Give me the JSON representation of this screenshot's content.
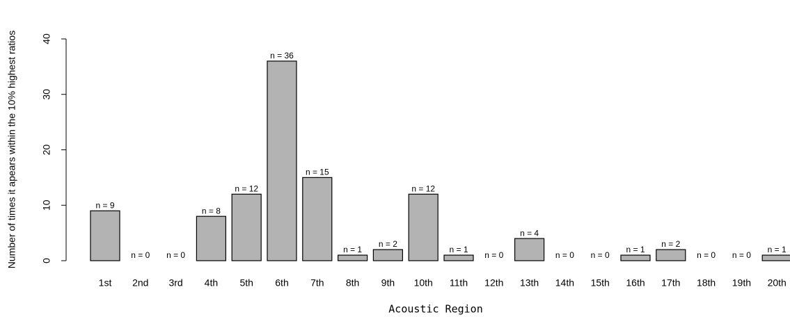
{
  "chart_data": {
    "type": "bar",
    "x_label": "Acoustic Region",
    "y_label": "Number of times it apears within the 10% highest ratios",
    "categories": [
      "1st",
      "2nd",
      "3rd",
      "4th",
      "5th",
      "6th",
      "7th",
      "8th",
      "9th",
      "10th",
      "11th",
      "12th",
      "13th",
      "14th",
      "15th",
      "16th",
      "17th",
      "18th",
      "19th",
      "20th"
    ],
    "values": [
      9,
      0,
      0,
      8,
      12,
      36,
      15,
      1,
      2,
      12,
      1,
      0,
      4,
      0,
      0,
      1,
      2,
      0,
      0,
      1
    ],
    "value_labels": [
      "n = 9",
      "n = 0",
      "n = 0",
      "n = 8",
      "n = 12",
      "n = 36",
      "n = 15",
      "n = 1",
      "n = 2",
      "n = 12",
      "n = 1",
      "n = 0",
      "n = 4",
      "n = 0",
      "n = 0",
      "n = 1",
      "n = 2",
      "n = 0",
      "n = 0",
      "n = 1"
    ],
    "color": "#b3b3b3",
    "ylim": [
      0,
      40
    ],
    "yticks": [
      0,
      10,
      20,
      30,
      40
    ]
  }
}
